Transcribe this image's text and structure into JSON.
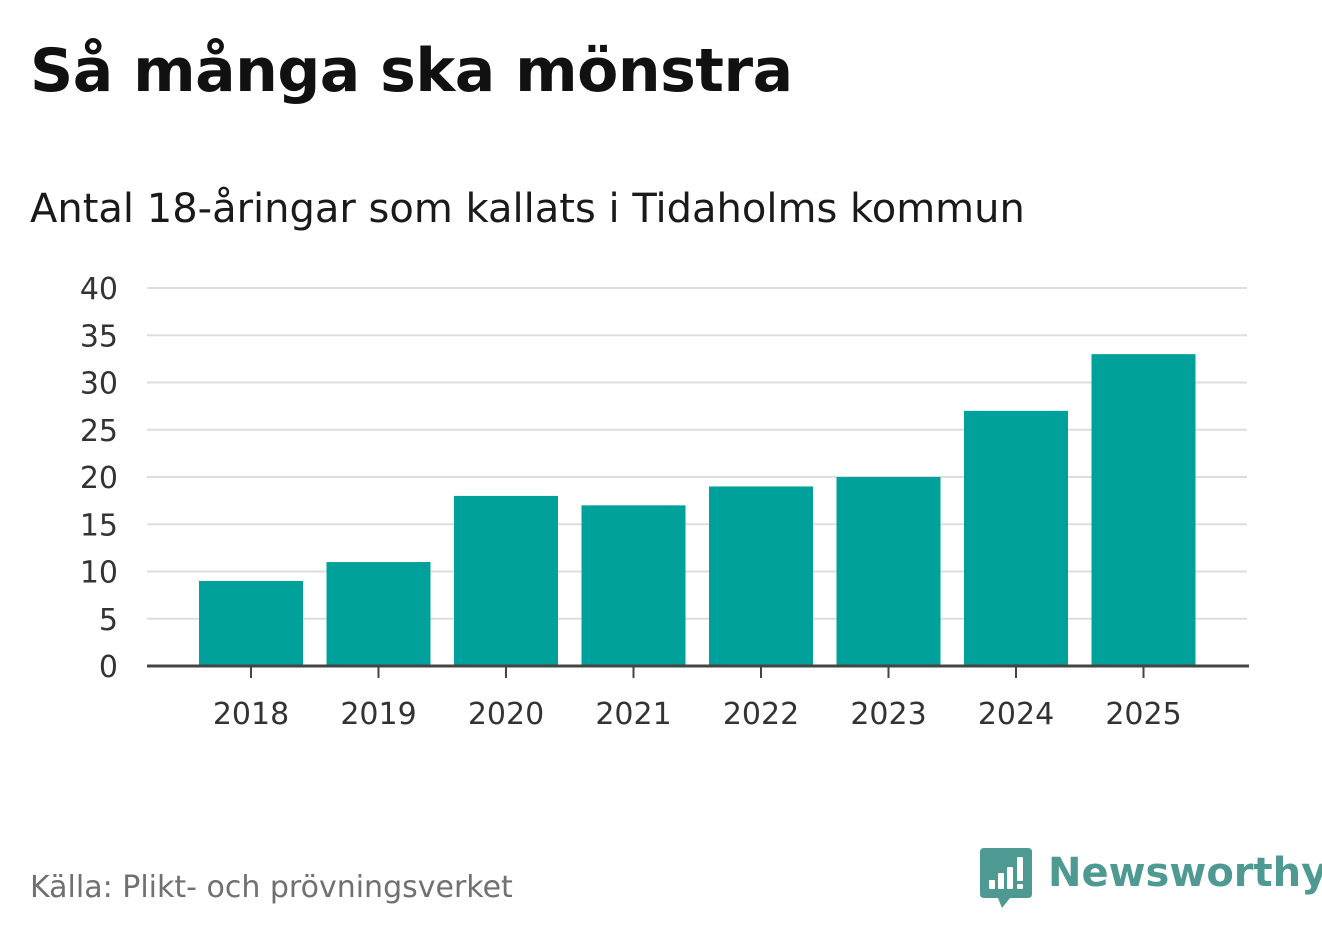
{
  "header": {
    "title": "Så många ska mönstra",
    "subtitle": "Antal 18-åringar som kallats i Tidaholms kommun"
  },
  "footer": {
    "source": "Källa: Plikt- och prövningsverket",
    "brand": "Newsworthy",
    "brand_icon": "bar-chart-speech-bubble-icon"
  },
  "colors": {
    "bar": "#00a19a",
    "gridline": "#dddddd",
    "axis": "#444444",
    "brand": "#4e9a92"
  },
  "chart_data": {
    "type": "bar",
    "title": "Så många ska mönstra",
    "subtitle": "Antal 18-åringar som kallats i Tidaholms kommun",
    "categories": [
      "2018",
      "2019",
      "2020",
      "2021",
      "2022",
      "2023",
      "2024",
      "2025"
    ],
    "values": [
      9,
      11,
      18,
      17,
      19,
      20,
      27,
      33
    ],
    "xlabel": "",
    "ylabel": "",
    "ylim": [
      0,
      40
    ],
    "yticks": [
      0,
      5,
      10,
      15,
      20,
      25,
      30,
      35,
      40
    ],
    "grid": true,
    "legend": "none"
  }
}
